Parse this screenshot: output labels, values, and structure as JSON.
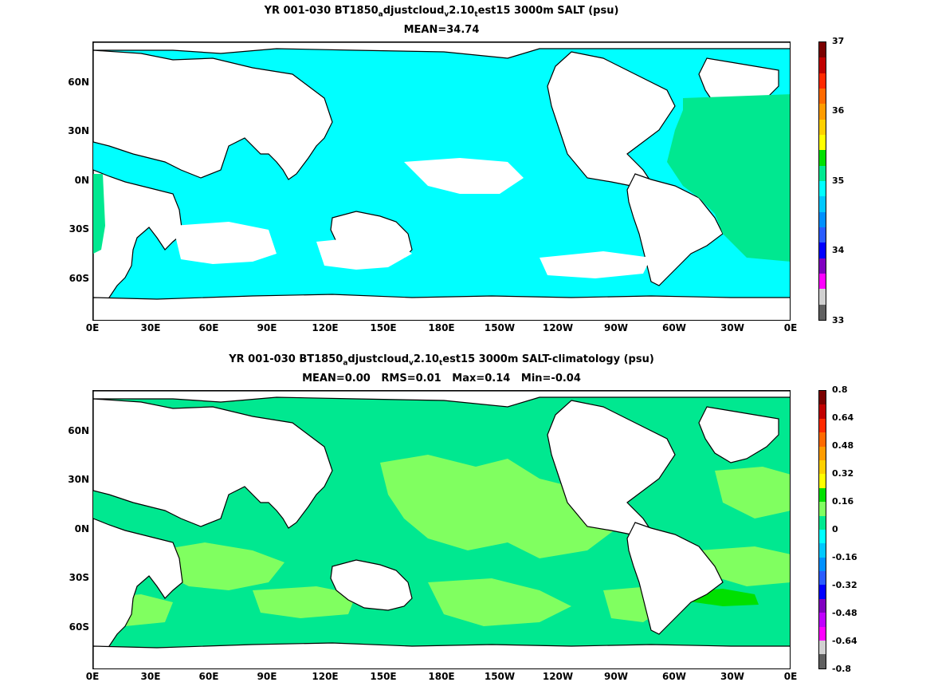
{
  "panels": [
    {
      "title_parts": [
        "YR 001-030 BT1850",
        "a",
        "djustcloud",
        "v",
        "2.10",
        "t",
        "est15 3000m SALT (psu)"
      ],
      "subtitle": "MEAN=34.74",
      "lat_labels": [
        "60N",
        "30N",
        "0N",
        "30S",
        "60S"
      ],
      "lon_labels": [
        "0E",
        "30E",
        "60E",
        "90E",
        "120E",
        "150E",
        "180E",
        "150W",
        "120W",
        "90W",
        "60W",
        "30W",
        "0E"
      ],
      "colorbar_labels": [
        "37",
        "36",
        "35",
        "34",
        "33"
      ],
      "colorbar_colors": [
        "#7a0000",
        "#c00000",
        "#ff2a00",
        "#ff6a00",
        "#ff9c00",
        "#ffd000",
        "#ffff00",
        "#00e000",
        "#00e890",
        "#00ffff",
        "#00c8ff",
        "#0090ff",
        "#2a5cff",
        "#0000ff",
        "#8000c0",
        "#ff00ff",
        "#d0d0d0",
        "#606060"
      ],
      "field_colors": {
        "ocean": "#00ffff",
        "atlantic": "#00e890"
      }
    },
    {
      "title_parts": [
        "YR 001-030 BT1850",
        "a",
        "djustcloud",
        "v",
        "2.10",
        "t",
        "est15 3000m SALT-climatology (psu)"
      ],
      "subtitle": "MEAN=0.00   RMS=0.01   Max=0.14   Min=-0.04",
      "lat_labels": [
        "60N",
        "30N",
        "0N",
        "30S",
        "60S"
      ],
      "lon_labels": [
        "0E",
        "30E",
        "60E",
        "90E",
        "120E",
        "150E",
        "180E",
        "150W",
        "120W",
        "90W",
        "60W",
        "30W",
        "0E"
      ],
      "colorbar_labels": [
        "0.8",
        "0.64",
        "0.48",
        "0.32",
        "0.16",
        "0",
        "-0.16",
        "-0.32",
        "-0.48",
        "-0.64",
        "-0.8"
      ],
      "colorbar_colors": [
        "#7a0000",
        "#c00000",
        "#ff2a00",
        "#ff6a00",
        "#ff9c00",
        "#ffd000",
        "#ffff00",
        "#00e000",
        "#80ff60",
        "#00e890",
        "#00ffff",
        "#00c8ff",
        "#0090ff",
        "#2a5cff",
        "#0000ff",
        "#8000c0",
        "#c000ff",
        "#ff00ff",
        "#d0d0d0",
        "#606060"
      ],
      "field_colors": {
        "ocean": "#80ff60",
        "atlantic": "#00e890"
      }
    }
  ]
}
